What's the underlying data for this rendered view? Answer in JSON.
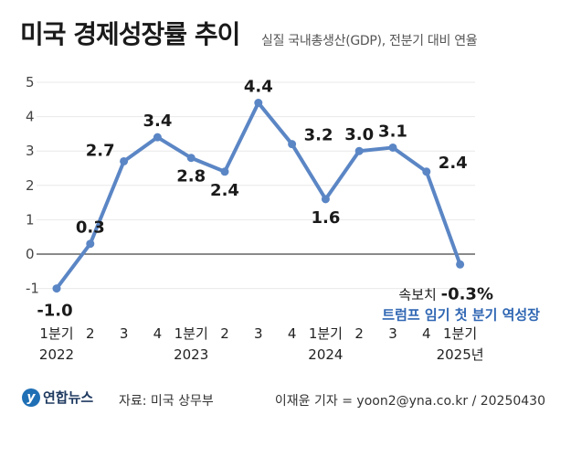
{
  "header": {
    "title": "미국 경제성장률 추이",
    "subtitle": "실질 국내총생산(GDP), 전분기 대비 연율"
  },
  "footer": {
    "logo_text": "연합뉴스",
    "logo_mark": "y",
    "source": "자료: 미국 상무부",
    "credit": "이재윤 기자 = yoon2@yna.co.kr / 20250430"
  },
  "colors": {
    "line": "#5b86c5",
    "annotation_highlight": "#2f66b3",
    "baseline": "#444444",
    "grid": "#e8e8e8"
  },
  "chart_data": {
    "type": "line",
    "title": "미국 경제성장률 추이",
    "subtitle": "실질 국내총생산(GDP), 전분기 대비 연율",
    "ylim": [
      -1,
      5
    ],
    "yticks": [
      "-1",
      "0",
      "1",
      "2",
      "3",
      "4",
      "5"
    ],
    "grid": false,
    "x_labels": [
      "1분기",
      "2",
      "3",
      "4",
      "1분기",
      "2",
      "3",
      "4",
      "1분기",
      "2",
      "3",
      "4",
      "1분기"
    ],
    "year_labels": [
      {
        "index": 0,
        "label": "2022"
      },
      {
        "index": 4,
        "label": "2023"
      },
      {
        "index": 8,
        "label": "2024"
      },
      {
        "index": 12,
        "label": "2025년"
      }
    ],
    "values": [
      -1.0,
      0.3,
      2.7,
      3.4,
      2.8,
      2.4,
      4.4,
      3.2,
      1.6,
      3.0,
      3.1,
      2.4,
      -0.3
    ],
    "value_labels": [
      "-1.0",
      "0.3",
      "2.7",
      "3.4",
      "2.8",
      "2.4",
      "4.4",
      "3.2",
      "1.6",
      "3.0",
      "3.1",
      "2.4",
      "-0.3%"
    ],
    "label_positions": [
      "below",
      "above",
      "left",
      "above",
      "below",
      "below",
      "above",
      "right",
      "below",
      "above",
      "above",
      "right",
      "below"
    ],
    "annotation": {
      "prefix": "속보치",
      "highlight": "트럼프 임기 첫 분기 역성장"
    }
  }
}
